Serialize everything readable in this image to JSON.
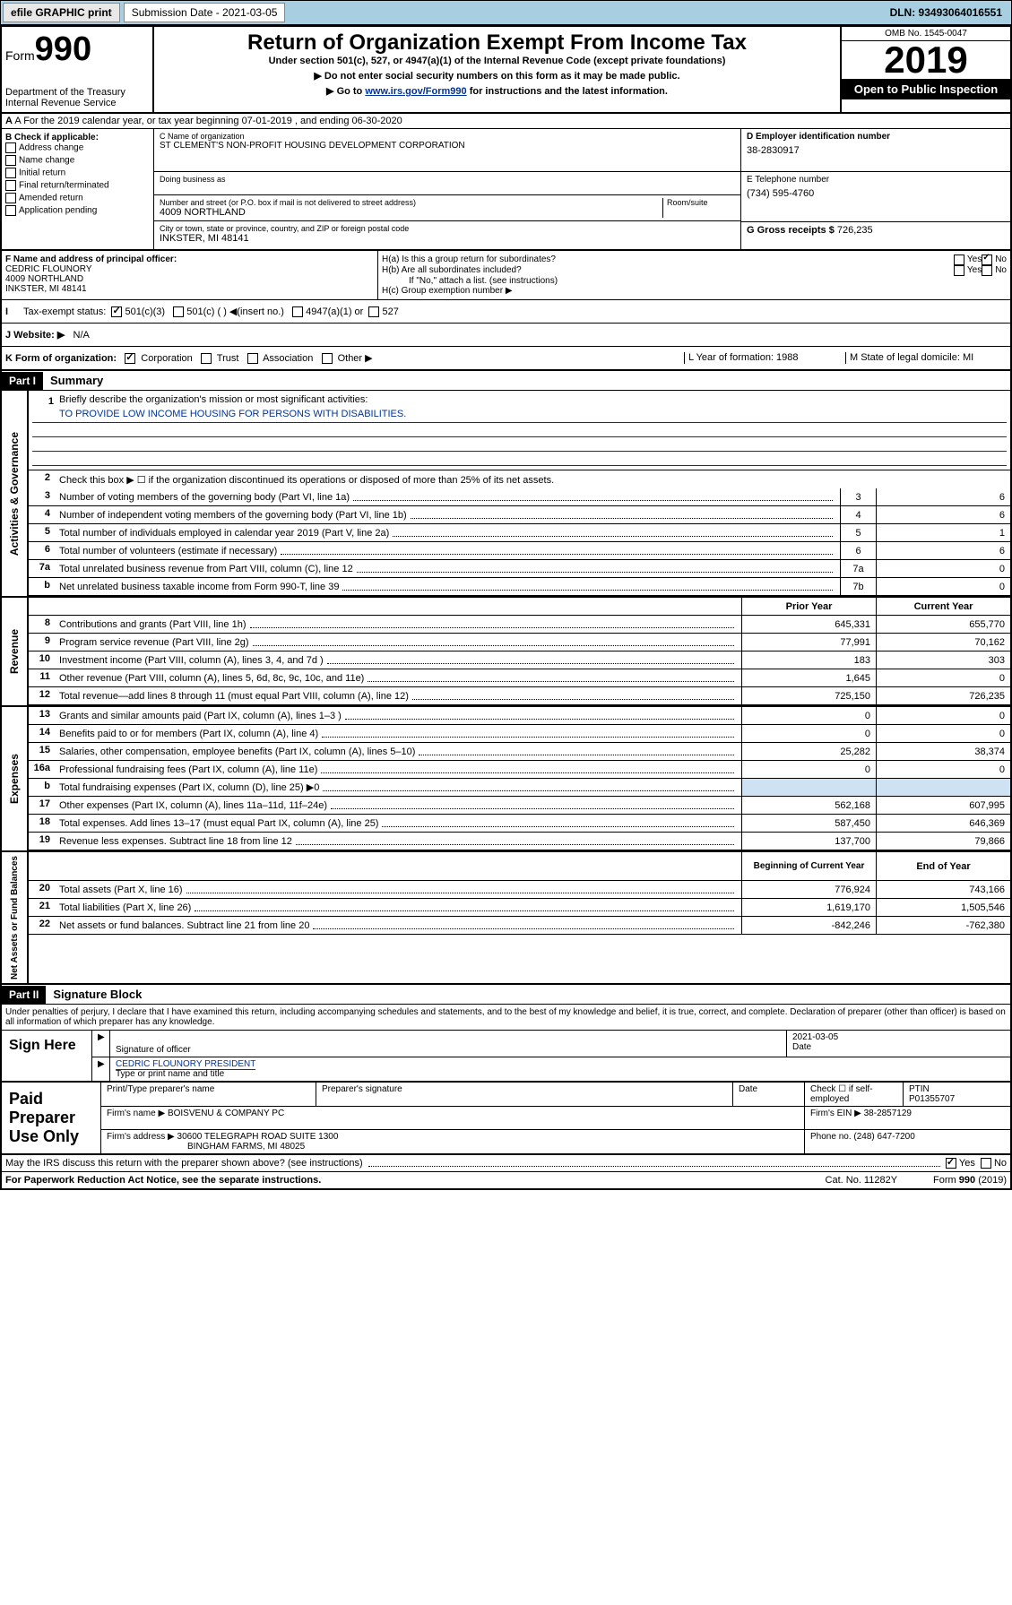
{
  "topbar": {
    "efile": "efile GRAPHIC print",
    "subdate_label": "Submission Date - 2021-03-05",
    "dln": "DLN: 93493064016551"
  },
  "header": {
    "form_pre": "Form",
    "form_num": "990",
    "dept": "Department of the Treasury\nInternal Revenue Service",
    "title": "Return of Organization Exempt From Income Tax",
    "sub1": "Under section 501(c), 527, or 4947(a)(1) of the Internal Revenue Code (except private foundations)",
    "sub2": "▶ Do not enter social security numbers on this form as it may be made public.",
    "sub3_pre": "▶ Go to ",
    "sub3_link": "www.irs.gov/Form990",
    "sub3_post": " for instructions and the latest information.",
    "omb": "OMB No. 1545-0047",
    "year": "2019",
    "open": "Open to Public Inspection"
  },
  "rowA": "A For the 2019 calendar year, or tax year beginning 07-01-2019    , and ending 06-30-2020",
  "boxB": {
    "label": "B Check if applicable:",
    "items": [
      "Address change",
      "Name change",
      "Initial return",
      "Final return/terminated",
      "Amended return",
      "Application pending"
    ]
  },
  "boxC": {
    "name_label": "C Name of organization",
    "name": "ST CLEMENT'S NON-PROFIT HOUSING DEVELOPMENT CORPORATION",
    "dba_label": "Doing business as",
    "addr_label": "Number and street (or P.O. box if mail is not delivered to street address)",
    "room_label": "Room/suite",
    "addr": "4009 NORTHLAND",
    "city_label": "City or town, state or province, country, and ZIP or foreign postal code",
    "city": "INKSTER, MI  48141"
  },
  "boxD": {
    "label": "D Employer identification number",
    "val": "38-2830917"
  },
  "boxE": {
    "label": "E Telephone number",
    "val": "(734) 595-4760"
  },
  "boxG": {
    "label": "G Gross receipts $",
    "val": "726,235"
  },
  "boxF": {
    "label": "F  Name and address of principal officer:",
    "name": "CEDRIC FLOUNORY",
    "addr": "4009 NORTHLAND",
    "city": "INKSTER, MI  48141"
  },
  "boxH": {
    "a": "H(a)  Is this a group return for subordinates?",
    "b": "H(b)  Are all subordinates included?",
    "b_note": "If \"No,\" attach a list. (see instructions)",
    "c": "H(c)  Group exemption number ▶"
  },
  "rowI": {
    "label": "Tax-exempt status:",
    "opts": [
      "501(c)(3)",
      "501(c) (   ) ◀(insert no.)",
      "4947(a)(1) or",
      "527"
    ]
  },
  "rowJ": {
    "label": "J  Website: ▶",
    "val": "N/A"
  },
  "rowK": {
    "label": "K Form of organization:",
    "opts": [
      "Corporation",
      "Trust",
      "Association",
      "Other ▶"
    ],
    "L": "L Year of formation: 1988",
    "M": "M State of legal domicile: MI"
  },
  "partI": {
    "num": "Part I",
    "title": "Summary",
    "l1_label": "Briefly describe the organization's mission or most significant activities:",
    "l1_text": "TO PROVIDE LOW INCOME HOUSING FOR PERSONS WITH DISABILITIES.",
    "l2": "Check this box ▶ ☐  if the organization discontinued its operations or disposed of more than 25% of its net assets.",
    "lines_gov": [
      {
        "n": "3",
        "t": "Number of voting members of the governing body (Part VI, line 1a)",
        "box": "3",
        "v": "6"
      },
      {
        "n": "4",
        "t": "Number of independent voting members of the governing body (Part VI, line 1b)",
        "box": "4",
        "v": "6"
      },
      {
        "n": "5",
        "t": "Total number of individuals employed in calendar year 2019 (Part V, line 2a)",
        "box": "5",
        "v": "1"
      },
      {
        "n": "6",
        "t": "Total number of volunteers (estimate if necessary)",
        "box": "6",
        "v": "6"
      },
      {
        "n": "7a",
        "t": "Total unrelated business revenue from Part VIII, column (C), line 12",
        "box": "7a",
        "v": "0"
      },
      {
        "n": "b",
        "t": "Net unrelated business taxable income from Form 990-T, line 39",
        "box": "7b",
        "v": "0"
      }
    ],
    "head_prior": "Prior Year",
    "head_curr": "Current Year",
    "lines_rev": [
      {
        "n": "8",
        "t": "Contributions and grants (Part VIII, line 1h)",
        "p": "645,331",
        "c": "655,770"
      },
      {
        "n": "9",
        "t": "Program service revenue (Part VIII, line 2g)",
        "p": "77,991",
        "c": "70,162"
      },
      {
        "n": "10",
        "t": "Investment income (Part VIII, column (A), lines 3, 4, and 7d )",
        "p": "183",
        "c": "303"
      },
      {
        "n": "11",
        "t": "Other revenue (Part VIII, column (A), lines 5, 6d, 8c, 9c, 10c, and 11e)",
        "p": "1,645",
        "c": "0"
      },
      {
        "n": "12",
        "t": "Total revenue—add lines 8 through 11 (must equal Part VIII, column (A), line 12)",
        "p": "725,150",
        "c": "726,235"
      }
    ],
    "lines_exp": [
      {
        "n": "13",
        "t": "Grants and similar amounts paid (Part IX, column (A), lines 1–3 )",
        "p": "0",
        "c": "0"
      },
      {
        "n": "14",
        "t": "Benefits paid to or for members (Part IX, column (A), line 4)",
        "p": "0",
        "c": "0"
      },
      {
        "n": "15",
        "t": "Salaries, other compensation, employee benefits (Part IX, column (A), lines 5–10)",
        "p": "25,282",
        "c": "38,374"
      },
      {
        "n": "16a",
        "t": "Professional fundraising fees (Part IX, column (A), line 11e)",
        "p": "0",
        "c": "0"
      },
      {
        "n": "b",
        "t": "Total fundraising expenses (Part IX, column (D), line 25) ▶0",
        "p": "",
        "c": "",
        "shaded": true
      },
      {
        "n": "17",
        "t": "Other expenses (Part IX, column (A), lines 11a–11d, 11f–24e)",
        "p": "562,168",
        "c": "607,995"
      },
      {
        "n": "18",
        "t": "Total expenses. Add lines 13–17 (must equal Part IX, column (A), line 25)",
        "p": "587,450",
        "c": "646,369"
      },
      {
        "n": "19",
        "t": "Revenue less expenses. Subtract line 18 from line 12",
        "p": "137,700",
        "c": "79,866"
      }
    ],
    "head_begin": "Beginning of Current Year",
    "head_end": "End of Year",
    "lines_net": [
      {
        "n": "20",
        "t": "Total assets (Part X, line 16)",
        "p": "776,924",
        "c": "743,166"
      },
      {
        "n": "21",
        "t": "Total liabilities (Part X, line 26)",
        "p": "1,619,170",
        "c": "1,505,546"
      },
      {
        "n": "22",
        "t": "Net assets or fund balances. Subtract line 21 from line 20",
        "p": "-842,246",
        "c": "-762,380"
      }
    ],
    "side_gov": "Activities & Governance",
    "side_rev": "Revenue",
    "side_exp": "Expenses",
    "side_net": "Net Assets or Fund Balances"
  },
  "partII": {
    "num": "Part II",
    "title": "Signature Block",
    "perjury": "Under penalties of perjury, I declare that I have examined this return, including accompanying schedules and statements, and to the best of my knowledge and belief, it is true, correct, and complete. Declaration of preparer (other than officer) is based on all information of which preparer has any knowledge."
  },
  "sign": {
    "label": "Sign Here",
    "sig_officer": "Signature of officer",
    "date": "2021-03-05",
    "date_label": "Date",
    "name": "CEDRIC FLOUNORY PRESIDENT",
    "name_label": "Type or print name and title"
  },
  "paid": {
    "label": "Paid Preparer Use Only",
    "h_name": "Print/Type preparer's name",
    "h_sig": "Preparer's signature",
    "h_date": "Date",
    "h_check": "Check ☐ if self-employed",
    "h_ptin": "PTIN",
    "ptin": "P01355707",
    "firm_name_label": "Firm's name      ▶",
    "firm_name": "BOISVENU & COMPANY PC",
    "firm_ein_label": "Firm's EIN ▶",
    "firm_ein": "38-2857129",
    "firm_addr_label": "Firm's address ▶",
    "firm_addr1": "30600 TELEGRAPH ROAD SUITE 1300",
    "firm_addr2": "BINGHAM FARMS, MI  48025",
    "phone_label": "Phone no.",
    "phone": "(248) 647-7200"
  },
  "footer": {
    "discuss": "May the IRS discuss this return with the preparer shown above? (see instructions)",
    "paperwork": "For Paperwork Reduction Act Notice, see the separate instructions.",
    "cat": "Cat. No. 11282Y",
    "form": "Form 990 (2019)"
  }
}
